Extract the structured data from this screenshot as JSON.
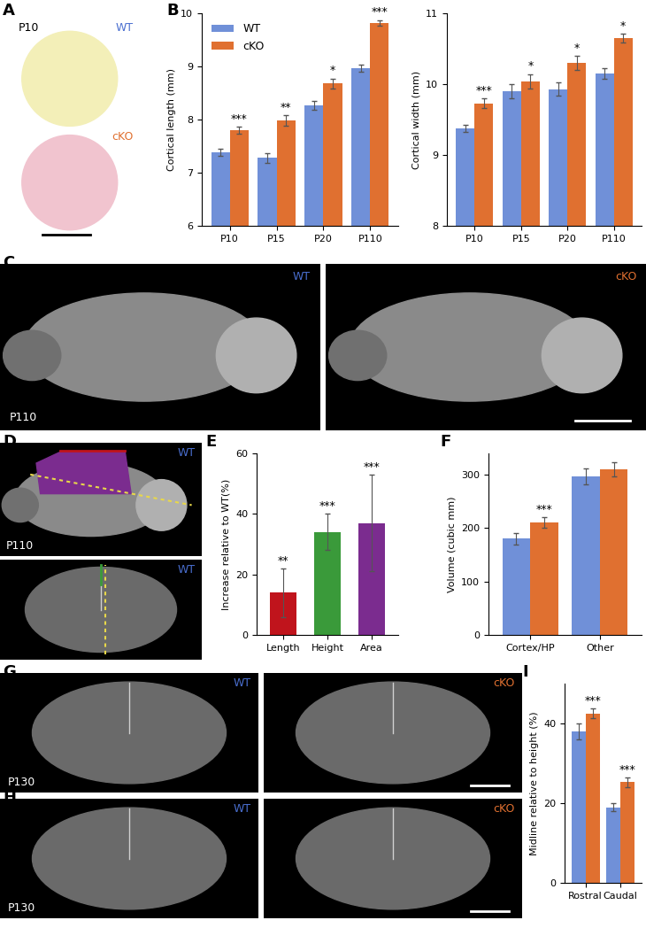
{
  "panel_letters": [
    "A",
    "B",
    "C",
    "D",
    "E",
    "F",
    "G",
    "H",
    "I"
  ],
  "image_panels": [
    {
      "panel": "A",
      "texts": [
        "P10",
        "WT",
        "cKO"
      ]
    },
    {
      "panel": "C",
      "texts": [
        "WT",
        "cKO",
        "P110"
      ]
    },
    {
      "panel": "D",
      "texts": [
        "WT",
        "P110",
        "WT"
      ]
    },
    {
      "panel": "G",
      "texts": [
        "WT",
        "cKO",
        "P130"
      ]
    },
    {
      "panel": "H",
      "texts": [
        "WT",
        "cKO",
        "P130"
      ]
    }
  ],
  "chart_data": [
    {
      "type": "bar",
      "panel": "B",
      "ylabel": "Cortical length (mm)",
      "categories": [
        "P10",
        "P15",
        "P20",
        "P110"
      ],
      "series": [
        {
          "name": "WT",
          "color": "#7090d8",
          "values": [
            7.38,
            7.28,
            8.27,
            8.97
          ],
          "errors": [
            0.07,
            0.09,
            0.08,
            0.07
          ]
        },
        {
          "name": "cKO",
          "color": "#e07030",
          "values": [
            7.8,
            7.98,
            8.68,
            9.82
          ],
          "errors": [
            0.06,
            0.1,
            0.09,
            0.05
          ]
        }
      ],
      "significance": [
        "***",
        "**",
        "*",
        "***"
      ],
      "ylim": [
        6,
        10
      ],
      "yticks": [
        6,
        7,
        8,
        9,
        10
      ],
      "legend": "upper left"
    },
    {
      "type": "bar",
      "panel": "B",
      "ylabel": "Cortical width (mm)",
      "categories": [
        "P10",
        "P15",
        "P20",
        "P110"
      ],
      "series": [
        {
          "name": "WT",
          "color": "#7090d8",
          "values": [
            9.37,
            9.9,
            9.93,
            10.15
          ],
          "errors": [
            0.05,
            0.1,
            0.09,
            0.08
          ]
        },
        {
          "name": "cKO",
          "color": "#e07030",
          "values": [
            9.73,
            10.04,
            10.3,
            10.65
          ],
          "errors": [
            0.07,
            0.1,
            0.1,
            0.06
          ]
        }
      ],
      "significance": [
        "***",
        "*",
        "*",
        "*"
      ],
      "ylim": [
        8,
        11
      ],
      "yticks": [
        8,
        9,
        10,
        11
      ]
    },
    {
      "type": "bar",
      "panel": "E",
      "ylabel": "Increase relative to WT(%)",
      "categories": [
        "Length",
        "Height",
        "Area"
      ],
      "values": [
        14,
        34,
        37
      ],
      "errors": [
        8,
        6,
        16
      ],
      "colors": [
        "#c0141c",
        "#3a9a3a",
        "#7b2c8f"
      ],
      "significance": [
        "**",
        "***",
        "***"
      ],
      "ylim": [
        0,
        60
      ],
      "yticks": [
        0,
        20,
        40,
        60
      ]
    },
    {
      "type": "bar",
      "panel": "F",
      "ylabel": "Volume (cubic mm)",
      "categories": [
        "Cortex/HP",
        "Other"
      ],
      "series": [
        {
          "name": "WT",
          "color": "#7090d8",
          "values": [
            180,
            297
          ],
          "errors": [
            10,
            15
          ]
        },
        {
          "name": "cKO",
          "color": "#e07030",
          "values": [
            210,
            310
          ],
          "errors": [
            10,
            13
          ]
        }
      ],
      "significance": [
        "***",
        null
      ],
      "ylim": [
        0,
        340
      ],
      "yticks": [
        0,
        100,
        200,
        300
      ]
    },
    {
      "type": "bar",
      "panel": "I",
      "ylabel": "Midline relative to height (%)",
      "categories": [
        "Rostral",
        "Caudal"
      ],
      "series": [
        {
          "name": "WT",
          "color": "#7090d8",
          "values": [
            38,
            19
          ],
          "errors": [
            2,
            1
          ]
        },
        {
          "name": "cKO",
          "color": "#e07030",
          "values": [
            42.5,
            25.3
          ],
          "errors": [
            1.2,
            1.2
          ]
        }
      ],
      "significance": [
        "***",
        "***"
      ],
      "ylim": [
        0,
        50
      ],
      "yticks": [
        0,
        20,
        40
      ]
    }
  ]
}
